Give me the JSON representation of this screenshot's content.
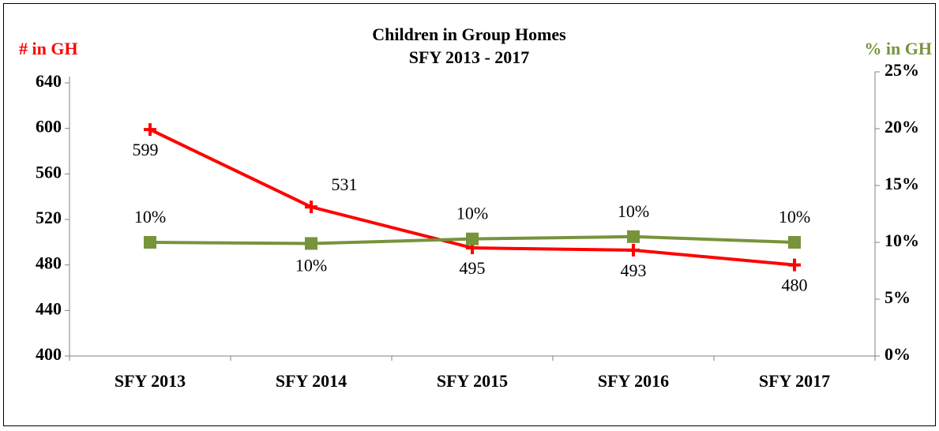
{
  "chart_data": {
    "type": "line",
    "title": [
      "Children in Group Homes",
      "SFY 2013 - 2017"
    ],
    "ylabel": "# in GH",
    "y2label": "% in GH",
    "categories": [
      "SFY 2013",
      "SFY 2014",
      "SFY 2015",
      "SFY 2016",
      "SFY 2017"
    ],
    "series": [
      {
        "name": "# in GH",
        "color": "#ff0000",
        "values": [
          599,
          531,
          495,
          493,
          480
        ]
      },
      {
        "name": "% in GH",
        "color": "#77933c",
        "axis": "y2",
        "values": [
          10,
          9.9,
          10.3,
          10.5,
          10
        ],
        "value_labels": [
          "10%",
          "10%",
          "10%",
          "10%",
          "10%"
        ]
      }
    ],
    "ylim": [
      400,
      640
    ],
    "yticks": [
      400,
      440,
      480,
      520,
      560,
      600,
      640
    ],
    "y2lim": [
      0,
      25
    ],
    "y2ticks": [
      {
        "value": 0,
        "label": "0%"
      },
      {
        "value": 5,
        "label": "5%"
      },
      {
        "value": 10,
        "label": "10%"
      },
      {
        "value": 15,
        "label": "15%"
      },
      {
        "value": 20,
        "label": "20%"
      },
      {
        "value": 25,
        "label": "25%"
      }
    ]
  }
}
